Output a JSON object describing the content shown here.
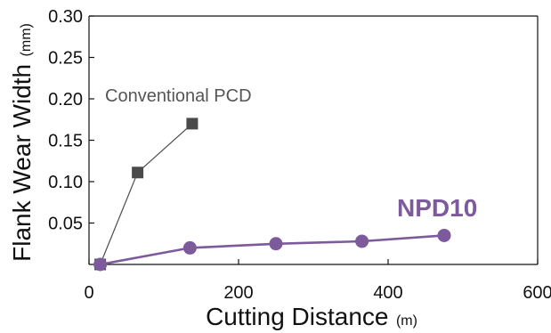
{
  "chart_data": {
    "type": "line",
    "xlabel": "Cutting Distance",
    "xlabel_unit": "(m)",
    "ylabel": "Flank Wear Width",
    "ylabel_unit": "(mm)",
    "xlim": [
      0,
      600
    ],
    "ylim": [
      0,
      0.3
    ],
    "x_ticks": [
      "0",
      "200",
      "400",
      "600"
    ],
    "y_ticks": [
      "0.05",
      "0.10",
      "0.15",
      "0.20",
      "0.25",
      "0.30"
    ],
    "grid": false,
    "series": [
      {
        "name": "Conventional PCD",
        "color": "#4a4a4a",
        "marker": "square",
        "points": [
          [
            15,
            0.0
          ],
          [
            65,
            0.111
          ],
          [
            138,
            0.17
          ]
        ]
      },
      {
        "name": "NPD10",
        "color": "#7d5a9c",
        "marker": "circle",
        "points": [
          [
            15,
            0.0
          ],
          [
            135,
            0.02
          ],
          [
            250,
            0.025
          ],
          [
            365,
            0.028
          ],
          [
            475,
            0.035
          ]
        ]
      }
    ]
  }
}
